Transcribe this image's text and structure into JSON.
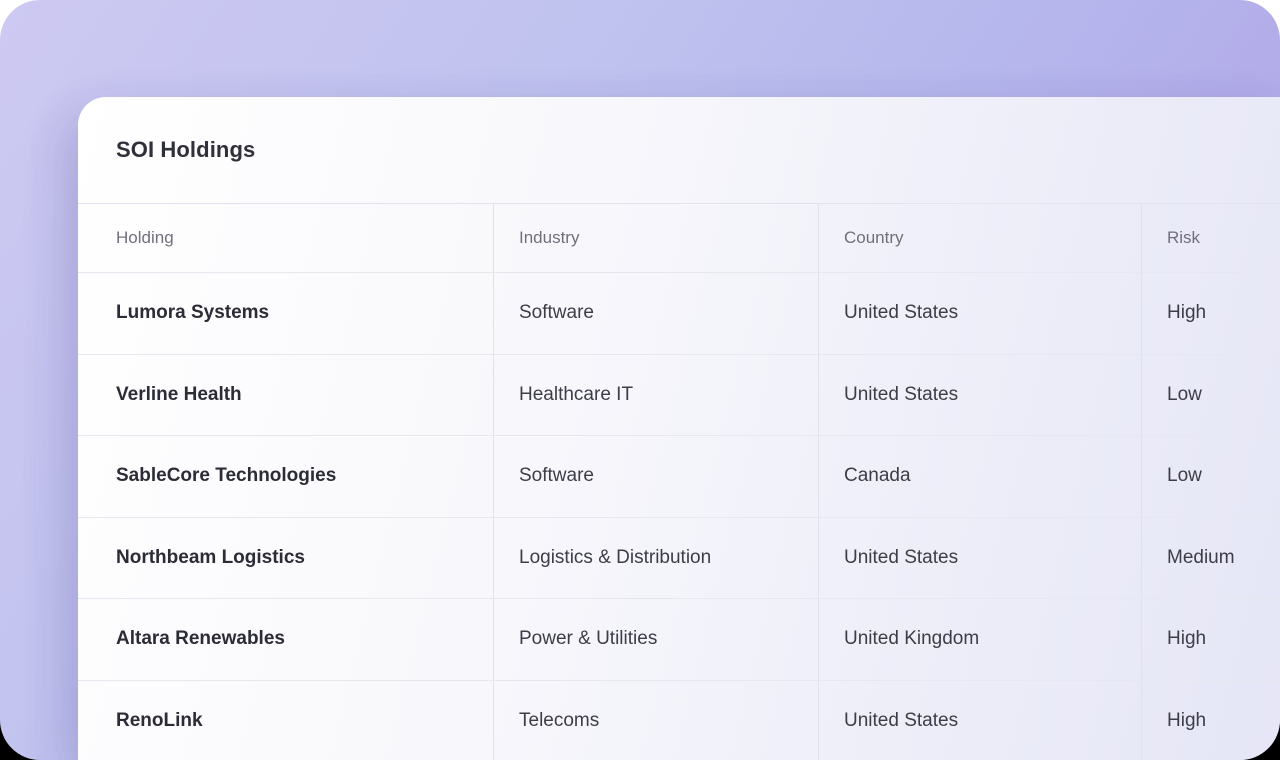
{
  "page": {
    "title": "SOI Holdings"
  },
  "colors": {
    "background_top_left": "#cdc9f2",
    "background_bottom_left": "#afa5e7",
    "card_left": "#ffffff",
    "card_right": "#e5e6f6",
    "row_border": "#e7e7f0",
    "column_border": "#e1e1ec",
    "title_text": "#30303a",
    "header_text": "#70707d",
    "cell_text": "#3d3d48",
    "holding_text": "#2c2c37"
  },
  "table": {
    "columns": [
      {
        "label": "Holding"
      },
      {
        "label": "Industry"
      },
      {
        "label": "Country"
      },
      {
        "label": "Risk"
      }
    ],
    "rows": [
      {
        "holding": "Lumora Systems",
        "industry": "Software",
        "country": "United States",
        "risk": "High"
      },
      {
        "holding": "Verline Health",
        "industry": "Healthcare IT",
        "country": "United States",
        "risk": "Low"
      },
      {
        "holding": "SableCore Technologies",
        "industry": "Software",
        "country": "Canada",
        "risk": "Low"
      },
      {
        "holding": "Northbeam Logistics",
        "industry": "Logistics & Distribution",
        "country": "United States",
        "risk": "Medium"
      },
      {
        "holding": "Altara Renewables",
        "industry": "Power & Utilities",
        "country": "United Kingdom",
        "risk": "High"
      },
      {
        "holding": "RenoLink",
        "industry": "Telecoms",
        "country": "United States",
        "risk": "High"
      }
    ]
  }
}
